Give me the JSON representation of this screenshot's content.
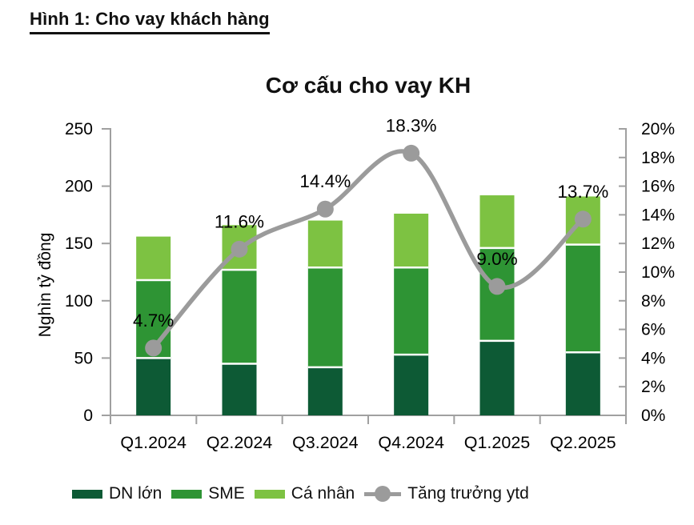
{
  "page": {
    "figure_title": "Hình 1: Cho vay khách hàng"
  },
  "chart_data": {
    "type": "bar",
    "subtype": "stacked-bar-with-line",
    "title": "Cơ cấu cho vay KH",
    "categories": [
      "Q1.2024",
      "Q2.2024",
      "Q3.2024",
      "Q4.2024",
      "Q1.2025",
      "Q2.2025"
    ],
    "series": [
      {
        "name": "DN lớn",
        "type": "bar",
        "axis": "left",
        "color": "#0d5a35",
        "values": [
          50,
          45,
          42,
          53,
          65,
          55
        ]
      },
      {
        "name": "SME",
        "type": "bar",
        "axis": "left",
        "color": "#2e9434",
        "values": [
          68,
          82,
          87,
          76,
          81,
          94
        ]
      },
      {
        "name": "Cá nhân",
        "type": "bar",
        "axis": "left",
        "color": "#7dc242",
        "values": [
          38,
          39,
          41,
          47,
          46,
          42
        ]
      },
      {
        "name": "Tăng trưởng ytd",
        "type": "line",
        "axis": "right",
        "color": "#9b9b9b",
        "values": [
          4.7,
          11.6,
          14.4,
          18.3,
          9.0,
          13.7
        ],
        "labels": [
          "4.7%",
          "11.6%",
          "14.4%",
          "18.3%",
          "9.0%",
          "13.7%"
        ]
      }
    ],
    "left_axis": {
      "label": "Nghìn tỷ đồng",
      "min": 0,
      "max": 250,
      "step": 50,
      "ticks": [
        "0",
        "50",
        "100",
        "150",
        "200",
        "250"
      ]
    },
    "right_axis": {
      "label": "",
      "min": 0,
      "max": 20,
      "step": 2,
      "ticks": [
        "0%",
        "2%",
        "4%",
        "6%",
        "8%",
        "10%",
        "12%",
        "14%",
        "16%",
        "18%",
        "20%"
      ]
    },
    "legend_position": "bottom",
    "grid": false,
    "colors": {
      "axis": "#a0a0a0",
      "text": "#000000",
      "separator": "#ffffff"
    }
  }
}
